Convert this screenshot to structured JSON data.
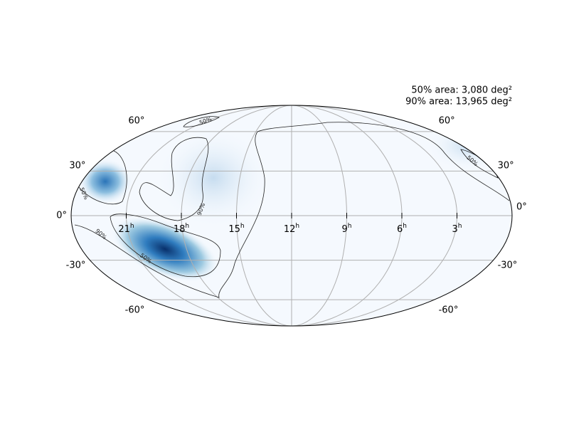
{
  "annotations": [
    "50% area: 3,080 deg²",
    "90% area: 13,965 deg²"
  ],
  "dec_ticks": [
    {
      "value": 60,
      "label": "60°"
    },
    {
      "value": 30,
      "label": "30°"
    },
    {
      "value": 0,
      "label": "0°"
    },
    {
      "value": -30,
      "label": "-30°"
    },
    {
      "value": -60,
      "label": "-60°"
    }
  ],
  "ra_ticks": [
    {
      "value": 21,
      "label": "21",
      "sup": "h"
    },
    {
      "value": 18,
      "label": "18",
      "sup": "h"
    },
    {
      "value": 15,
      "label": "15",
      "sup": "h"
    },
    {
      "value": 12,
      "label": "12",
      "sup": "h"
    },
    {
      "value": 9,
      "label": "9",
      "sup": "h"
    },
    {
      "value": 6,
      "label": "6",
      "sup": "h"
    },
    {
      "value": 3,
      "label": "3",
      "sup": "h"
    }
  ],
  "contour_labels": [
    "50%",
    "50%",
    "50%",
    "50%",
    "90%",
    "90%"
  ]
}
